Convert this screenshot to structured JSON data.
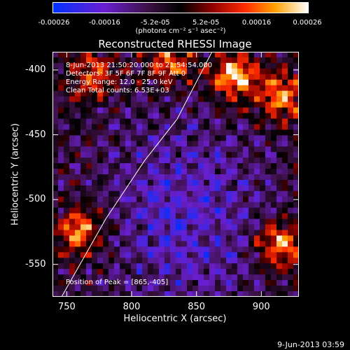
{
  "colorbar": {
    "ticks": [
      "-0.00026",
      "-0.00016",
      "-5.2e-05",
      "5.2e-05",
      "0.00016",
      "0.00026"
    ],
    "unit": "(photons cm⁻² s⁻¹ asec⁻²)"
  },
  "title": "Reconstructed RHESSI Image",
  "annotations": {
    "line1": "8-Jun-2013 21:50:20.000 to 21:54:54.000",
    "line2": "Detectors: 3F 5F 6F 7F 8F 9F  Att 0",
    "line3": "Energy Range: 12.0 - 25.0 keV",
    "line4": "Clean    Total counts: 6.53E+03",
    "peak": "Position of Peak = [865,-405]"
  },
  "xlabel": "Heliocentric X (arcsec)",
  "ylabel": "Heliocentric Y (arcsec)",
  "timestamp": "9-Jun-2013 03:59",
  "chart_data": {
    "type": "heatmap",
    "title": "Reconstructed RHESSI Image",
    "xlabel": "Heliocentric X (arcsec)",
    "ylabel": "Heliocentric Y (arcsec)",
    "xlim": [
      739,
      929
    ],
    "ylim": [
      -575,
      -386
    ],
    "xticks": [
      750,
      800,
      850,
      900
    ],
    "yticks": [
      -400,
      -450,
      -500,
      -550
    ],
    "colorbar_range": [
      -0.00026,
      0.00026
    ],
    "colormap": "blue-purple-black-red-orange-yellow-white",
    "limb_curve": [
      [
        746,
        -575
      ],
      [
        780,
        -515
      ],
      [
        810,
        -470
      ],
      [
        835,
        -438
      ],
      [
        862,
        -386
      ]
    ],
    "peak_position": [
      865,
      -405
    ],
    "bright_regions": [
      {
        "x": 880,
        "y": -405,
        "level": 1.0
      },
      {
        "x": 915,
        "y": -420,
        "level": 0.8
      },
      {
        "x": 760,
        "y": -525,
        "level": 0.85
      },
      {
        "x": 915,
        "y": -535,
        "level": 0.9
      },
      {
        "x": 830,
        "y": -395,
        "level": 0.7
      },
      {
        "x": 770,
        "y": -405,
        "level": 0.6
      }
    ]
  }
}
